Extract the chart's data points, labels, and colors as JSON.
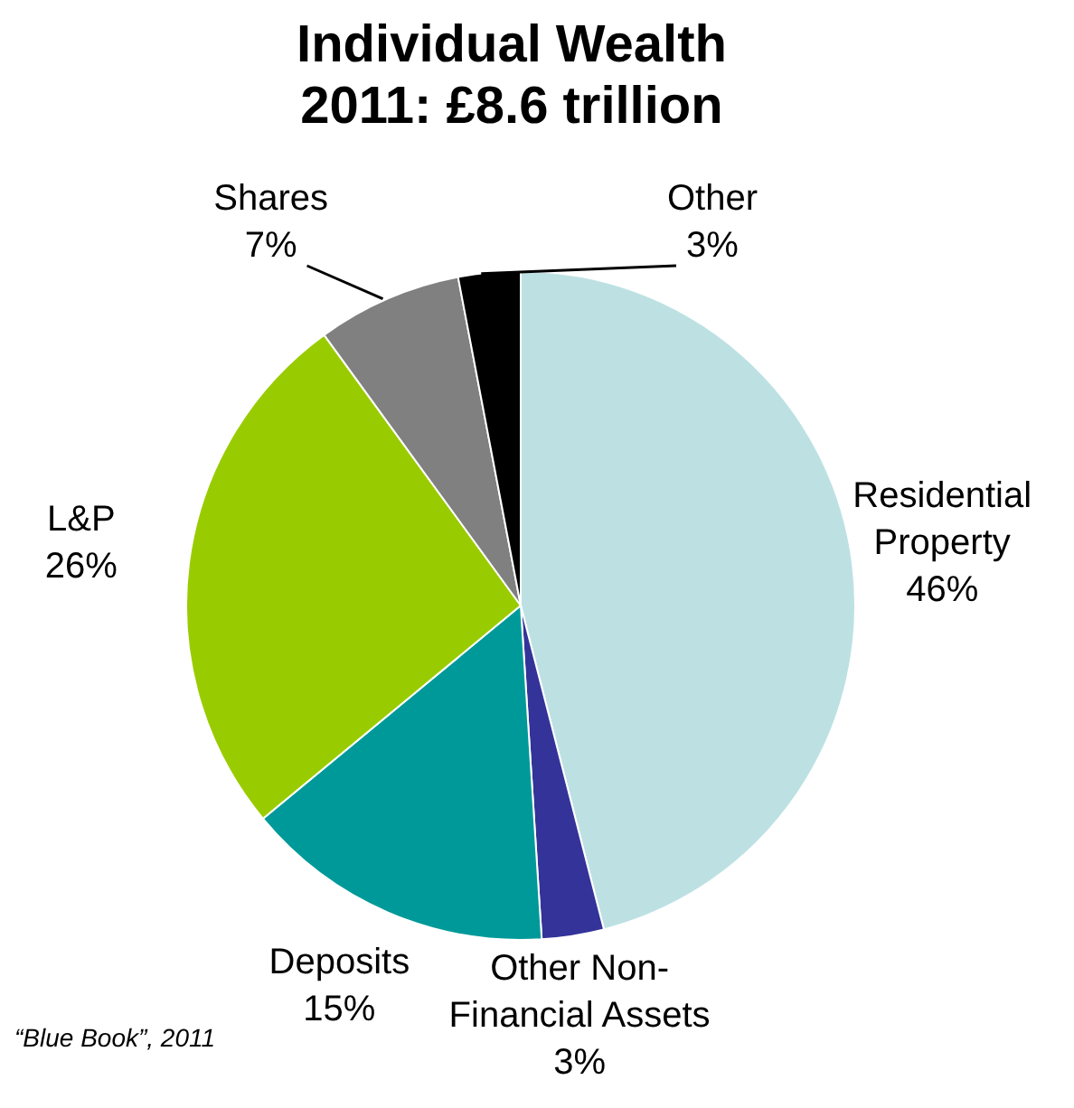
{
  "chart_data": {
    "type": "pie",
    "title": "Individual Wealth 2011: £8.6 trillion",
    "categories": [
      "Residential Property",
      "Other Non-Financial Assets",
      "Deposits",
      "L&P",
      "Shares",
      "Other"
    ],
    "values": [
      46,
      3,
      15,
      26,
      7,
      3
    ],
    "value_labels": [
      "46%",
      "3%",
      "15%",
      "26%",
      "7%",
      "3%"
    ],
    "colors": [
      "#bde1e3",
      "#333399",
      "#009999",
      "#99cc00",
      "#808080",
      "#000000"
    ],
    "annotations": [
      "“Blue Book”, 2011"
    ]
  }
}
